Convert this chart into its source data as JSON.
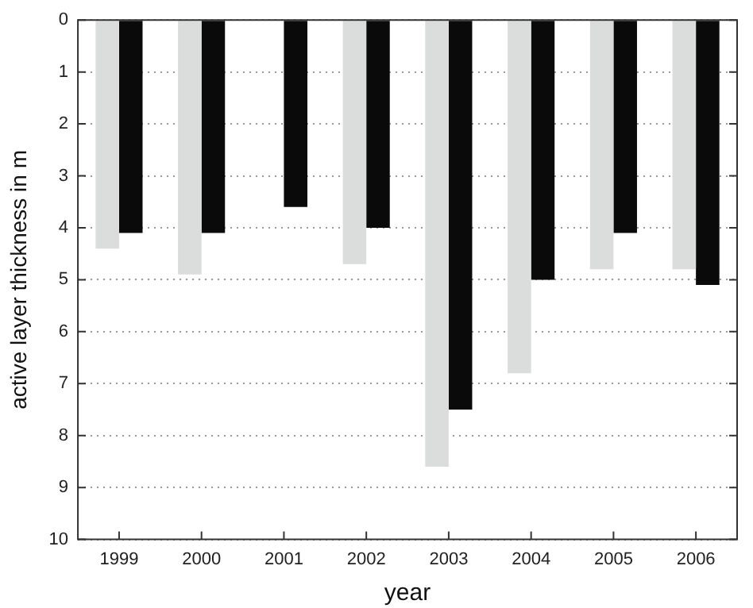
{
  "chart_data": {
    "type": "bar",
    "xlabel": "year",
    "ylabel": "active layer thickness in m",
    "categories": [
      "1999",
      "2000",
      "2001",
      "2002",
      "2003",
      "2004",
      "2005",
      "2006"
    ],
    "series": [
      {
        "color": "#dadddc",
        "values": [
          4.4,
          4.9,
          null,
          4.7,
          8.6,
          6.8,
          4.8,
          4.8
        ]
      },
      {
        "color": "#0a0a0a",
        "values": [
          4.1,
          4.1,
          3.6,
          4.0,
          7.5,
          5.0,
          4.1,
          5.1
        ]
      }
    ],
    "ylim": [
      10,
      0
    ],
    "yticks": [
      0,
      1,
      2,
      3,
      4,
      5,
      6,
      7,
      8,
      9,
      10
    ],
    "grid": "y",
    "legend": false
  }
}
